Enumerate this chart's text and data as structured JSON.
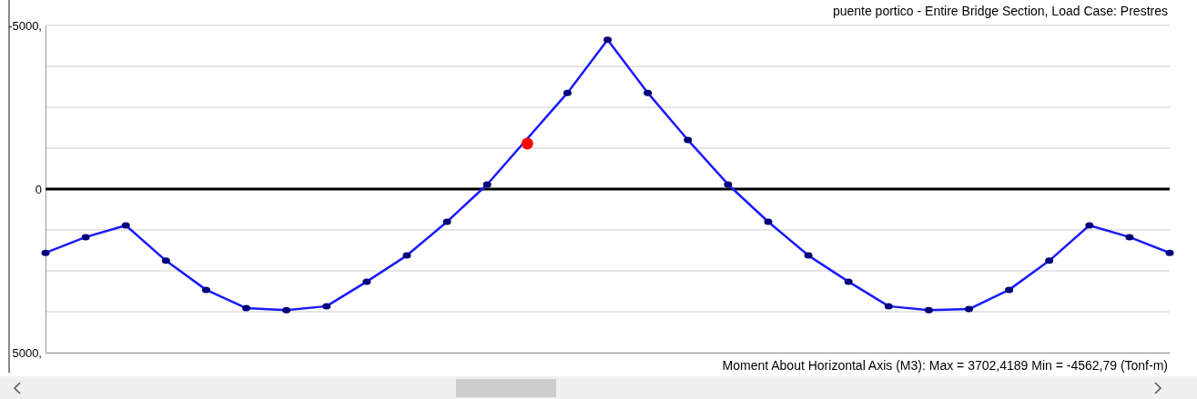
{
  "chart_data": {
    "type": "line",
    "title": "puente portico - Entire Bridge Section,  Load Case: Prestres",
    "annotations": [
      "Moment About Horizontal Axis  (M3):  Max = 3702,4189    Min = -4562,79  (Tonf-m)"
    ],
    "categories": [
      null,
      null,
      null,
      null,
      null,
      null,
      null,
      null,
      null,
      null,
      null,
      null,
      null,
      null,
      null,
      null,
      null,
      null,
      null,
      null,
      null,
      null,
      null,
      null,
      null,
      null,
      null,
      null,
      null
    ],
    "ylim": [
      5000,
      -5000
    ],
    "yticks": [
      {
        "value": -5000,
        "label": "-5000,"
      },
      {
        "value": -3750,
        "label": null
      },
      {
        "value": -2500,
        "label": null
      },
      {
        "value": -1250,
        "label": null
      },
      0,
      {
        "value": 1250,
        "label": null
      },
      {
        "value": 2500,
        "label": null
      },
      {
        "value": 3750,
        "label": null
      },
      {
        "value": 5000,
        "label": "5000,"
      }
    ],
    "grid": "y",
    "marker": "circle",
    "series": [
      {
        "type": "line",
        "color": "#1a1aff",
        "values": [
          1950,
          1470,
          1110,
          2190,
          3080,
          3640,
          3700,
          3580,
          2830,
          2030,
          1000,
          -140,
          null,
          -2940,
          -4560,
          -2940,
          -1500,
          -140,
          1000,
          2030,
          2830,
          3580,
          3700,
          3670,
          3080,
          2190,
          1110,
          1470,
          1950
        ]
      },
      {
        "type": "scatter",
        "color": "#ff0000",
        "values": [
          null,
          null,
          null,
          null,
          null,
          null,
          null,
          null,
          null,
          null,
          null,
          null,
          -1390,
          null,
          null,
          null,
          null,
          null,
          null,
          null,
          null,
          null,
          null,
          null,
          null,
          null,
          null,
          null,
          null
        ]
      }
    ],
    "ref_lines": [
      {
        "axis": "y",
        "value": 0,
        "color": "#000000"
      }
    ]
  }
}
